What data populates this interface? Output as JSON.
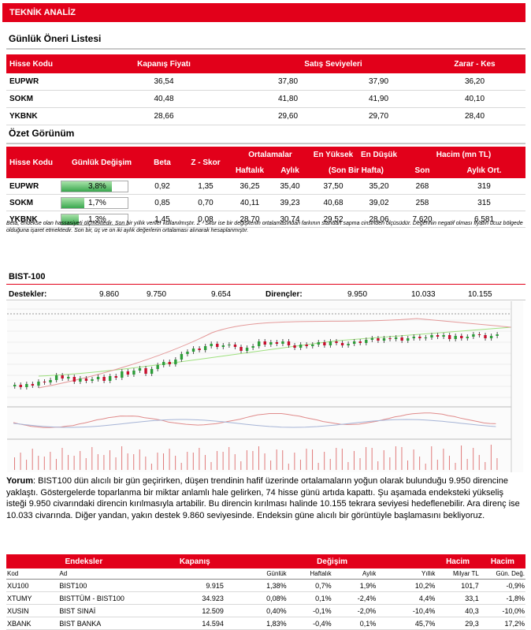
{
  "header": {
    "title": "TEKNİK ANALİZ"
  },
  "daily": {
    "title": "Günlük Öneri Listesi",
    "headers": [
      "Hisse Kodu",
      "Kapanış Fiyatı",
      "Satış Seviyeleri",
      "Zarar  - Kes"
    ],
    "rows": [
      [
        "EUPWR",
        "36,54",
        "37,80",
        "37,90",
        "36,20"
      ],
      [
        "SOKM",
        "40,48",
        "41,80",
        "41,90",
        "40,10"
      ],
      [
        "YKBNK",
        "28,66",
        "29,60",
        "29,70",
        "28,40"
      ]
    ]
  },
  "summary": {
    "title": "Özet Görünüm",
    "headers": {
      "code": "Hisse Kodu",
      "daily_change": "Günlük Değişim",
      "beta": "Beta",
      "z": "Z - Skor",
      "averages": "Ortalamalar",
      "weekly": "Haftalık",
      "monthly": "Aylık",
      "high": "En Yüksek",
      "low": "En Düşük",
      "last_week": "(Son Bir Hafta)",
      "volume": "Hacim (mn TL)",
      "last": "Son",
      "monthly_avg": "Aylık Ort."
    },
    "rows": [
      {
        "code": "EUPWR",
        "change": "3,8%",
        "change_pct": 3.8,
        "beta": "0,92",
        "z": "1,35",
        "weekly": "36,25",
        "monthly": "35,40",
        "high": "37,50",
        "low": "35,20",
        "vol": "268",
        "vol_avg": "319"
      },
      {
        "code": "SOKM",
        "change": "1,7%",
        "change_pct": 1.7,
        "beta": "0,85",
        "z": "0,70",
        "weekly": "40,11",
        "monthly": "39,23",
        "high": "40,68",
        "low": "39,02",
        "vol": "258",
        "vol_avg": "315"
      },
      {
        "code": "YKBNK",
        "change": "1,3%",
        "change_pct": 1.3,
        "beta": "1,45",
        "z": "0,08",
        "weekly": "28,70",
        "monthly": "30,74",
        "high": "29,52",
        "low": "28,06",
        "vol": "7.620",
        "vol_avg": "6.581"
      }
    ],
    "note": "Beta, endekse olan hassasiyeti ölçmektedir. Son bir yıllık veriler kullanılmıştır. Z - Skor ise bir değişkenin ortalamasından farkının standart sapma cinsinden ölçüsüdür. Değerinin negatif olması fiyatın ucuz bölgede olduğuna işaret etmektedir. Son bir, üç ve on iki aylık değerlerin ortalaması alınarak hesaplanmıştır."
  },
  "bist": {
    "title": "BIST-100",
    "supports_label": "Destekler:",
    "supports": [
      "9.860",
      "9.750",
      "9.654"
    ],
    "resistances_label": "Dirençler:",
    "resistances": [
      "9.950",
      "10.033",
      "10.155"
    ],
    "comment_label": "Yorum",
    "comment": ": BIST100 dün alıcılı bir gün geçirirken, düşen trendinin hafif üzerinde ortalamaların yoğun olarak bulunduğu 9.950 direncine yaklaştı. Göstergelerde toparlanma bir miktar anlamlı hale gelirken, 74 hisse günü artıda kapattı. Şu aşamada endeksteki yükseliş isteği 9.950 civarındaki direncin kırılmasıyla artabilir. Bu direncin kırılması halinde 10.155 tekrara seviyesi hedeflenebilir. Ara direnç ise 10.033 civarında. Diğer yandan, yakın destek 9.860 seviyesinde. Endeksin güne alıcılı bir görüntüyle başlamasını bekliyoruz."
  },
  "indices": {
    "headers": {
      "endeksler": "Endeksler",
      "kapanis": "Kapanış",
      "degisim": "Değişim",
      "hacim1": "Hacim",
      "hacim2": "Hacim"
    },
    "subheaders": [
      "Kod",
      "Ad",
      "",
      "Günlük",
      "Haftalık",
      "Aylık",
      "Yıllık",
      "Milyar TL",
      "Gün. Değ."
    ],
    "rows": [
      [
        "XU100",
        "BIST100",
        "9.915",
        "1,38%",
        "0,7%",
        "1,9%",
        "10,2%",
        "101,7",
        "-0,9%"
      ],
      [
        "XTUMY",
        "BISTTÜM - BIST100",
        "34.923",
        "0,08%",
        "0,1%",
        "-2,4%",
        "4,4%",
        "33,1",
        "-1,8%"
      ],
      [
        "XUSIN",
        "BIST SINAİ",
        "12.509",
        "0,40%",
        "-0,1%",
        "-2,0%",
        "-10,4%",
        "40,3",
        "-10,0%"
      ],
      [
        "XBANK",
        "BIST BANKA",
        "14.594",
        "1,83%",
        "-0,4%",
        "0,1%",
        "45,7%",
        "29,3",
        "17,2%"
      ]
    ]
  },
  "colors": {
    "accent": "#e2001a",
    "up": "#2e9e3a",
    "down": "#c8102e"
  }
}
